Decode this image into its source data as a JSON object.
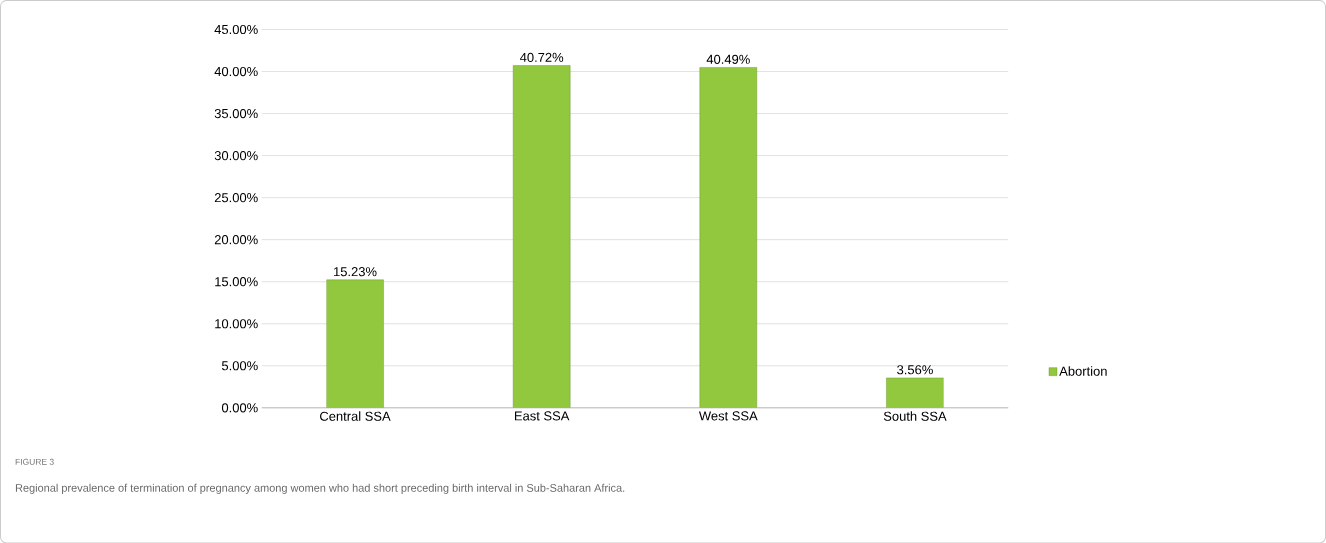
{
  "chart_data": {
    "type": "bar",
    "categories": [
      "Central SSA",
      "East SSA",
      "West SSA",
      "South SSA"
    ],
    "series": [
      {
        "name": "Abortion",
        "color": "#92c83e",
        "values": [
          15.23,
          40.72,
          40.49,
          3.56
        ],
        "value_labels": [
          "15.23%",
          "40.72%",
          "40.49%",
          "3.56%"
        ]
      }
    ],
    "ylim": [
      0,
      45
    ],
    "yticks": [
      {
        "value": 0,
        "label": "0.00%"
      },
      {
        "value": 5,
        "label": "5.00%"
      },
      {
        "value": 10,
        "label": "10.00%"
      },
      {
        "value": 15,
        "label": "15.00%"
      },
      {
        "value": 20,
        "label": "20.00%"
      },
      {
        "value": 25,
        "label": "25.00%"
      },
      {
        "value": 30,
        "label": "30.00%"
      },
      {
        "value": 35,
        "label": "35.00%"
      },
      {
        "value": 40,
        "label": "40.00%"
      },
      {
        "value": 45,
        "label": "45.00%"
      }
    ],
    "grid": "y",
    "legend": "right",
    "annotations": [
      "FIGURE 3",
      "Regional prevalence of termination of pregnancy among women who had short preceding birth interval in Sub-Saharan Africa."
    ]
  }
}
